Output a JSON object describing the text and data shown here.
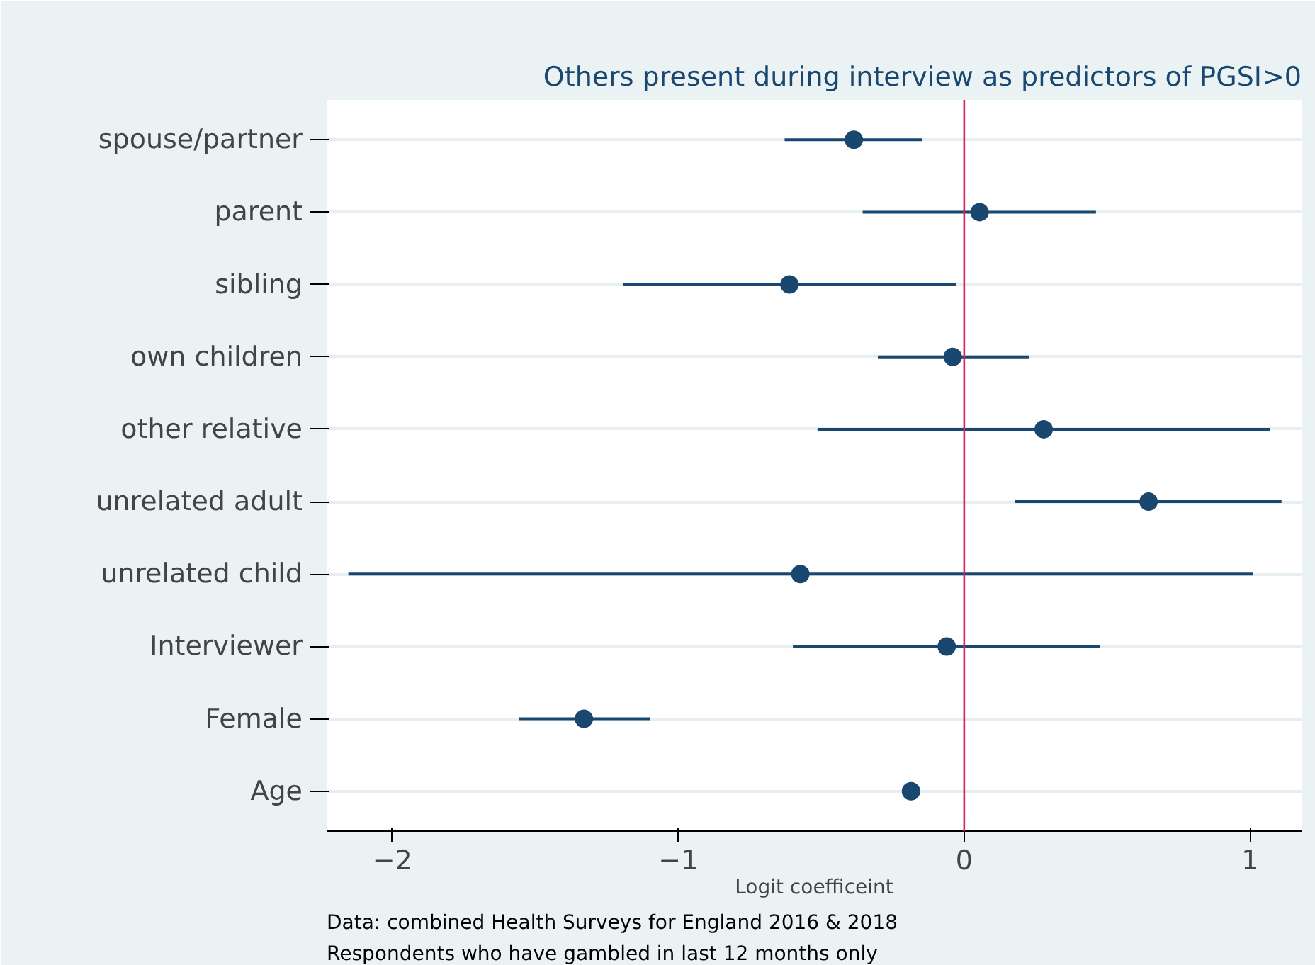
{
  "chart_data": {
    "type": "scatter",
    "orientation": "horizontal",
    "title": "Others present during interview as predictors of PGSI>0",
    "xlabel": "Logit coefficeint",
    "categories": [
      "spouse/partner",
      "parent",
      "sibling",
      "own children",
      "other relative",
      "unrelated adult",
      "unrelated child",
      "Interviewer",
      "Female",
      "Age"
    ],
    "values": [
      -0.386,
      0.054,
      -0.611,
      -0.04,
      0.278,
      0.645,
      -0.573,
      -0.061,
      -1.33,
      -0.186
    ],
    "errors": [
      [
        -0.628,
        -0.146
      ],
      [
        -0.355,
        0.461
      ],
      [
        -1.193,
        -0.028
      ],
      [
        -0.302,
        0.226
      ],
      [
        -0.513,
        1.07
      ],
      [
        0.177,
        1.11
      ],
      [
        -2.154,
        1.01
      ],
      [
        -0.599,
        0.474
      ],
      [
        -1.557,
        -1.099
      ],
      [
        -0.196,
        -0.176
      ]
    ],
    "color": "#1a476f",
    "marker": "circle",
    "xlim": [
      -2.23,
      1.18
    ],
    "xticks": [
      -2,
      -1,
      0,
      1
    ],
    "grid": "y",
    "ref_lines": [
      {
        "axis": "x",
        "value": 0,
        "color": "#d6275a"
      }
    ],
    "annotations": [
      "Data: combined Health Surveys for England 2016 & 2018",
      "Respondents who have gambled in last 12 months only"
    ]
  }
}
